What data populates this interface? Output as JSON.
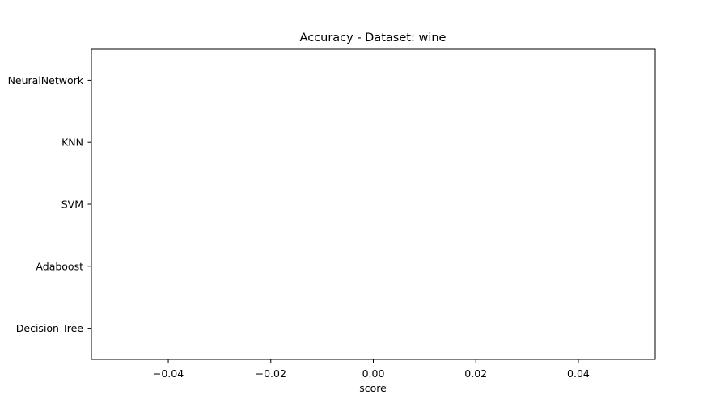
{
  "chart_data": {
    "type": "bar",
    "orientation": "horizontal",
    "title": "Accuracy - Dataset: wine",
    "xlabel": "score",
    "ylabel": "",
    "categories": [
      "Decision Tree",
      "Adaboost",
      "SVM",
      "KNN",
      "NeuralNetwork"
    ],
    "values": [
      0,
      0,
      0,
      0,
      0
    ],
    "xlim": [
      -0.055,
      0.055
    ],
    "xticks": [
      -0.04,
      -0.02,
      0.0,
      0.02,
      0.04
    ],
    "xtick_labels": [
      "−0.04",
      "−0.02",
      "0.00",
      "0.02",
      "0.04"
    ],
    "grid": false,
    "legend": "none"
  },
  "colors": {
    "axis": "#000000",
    "background": "#ffffff"
  }
}
